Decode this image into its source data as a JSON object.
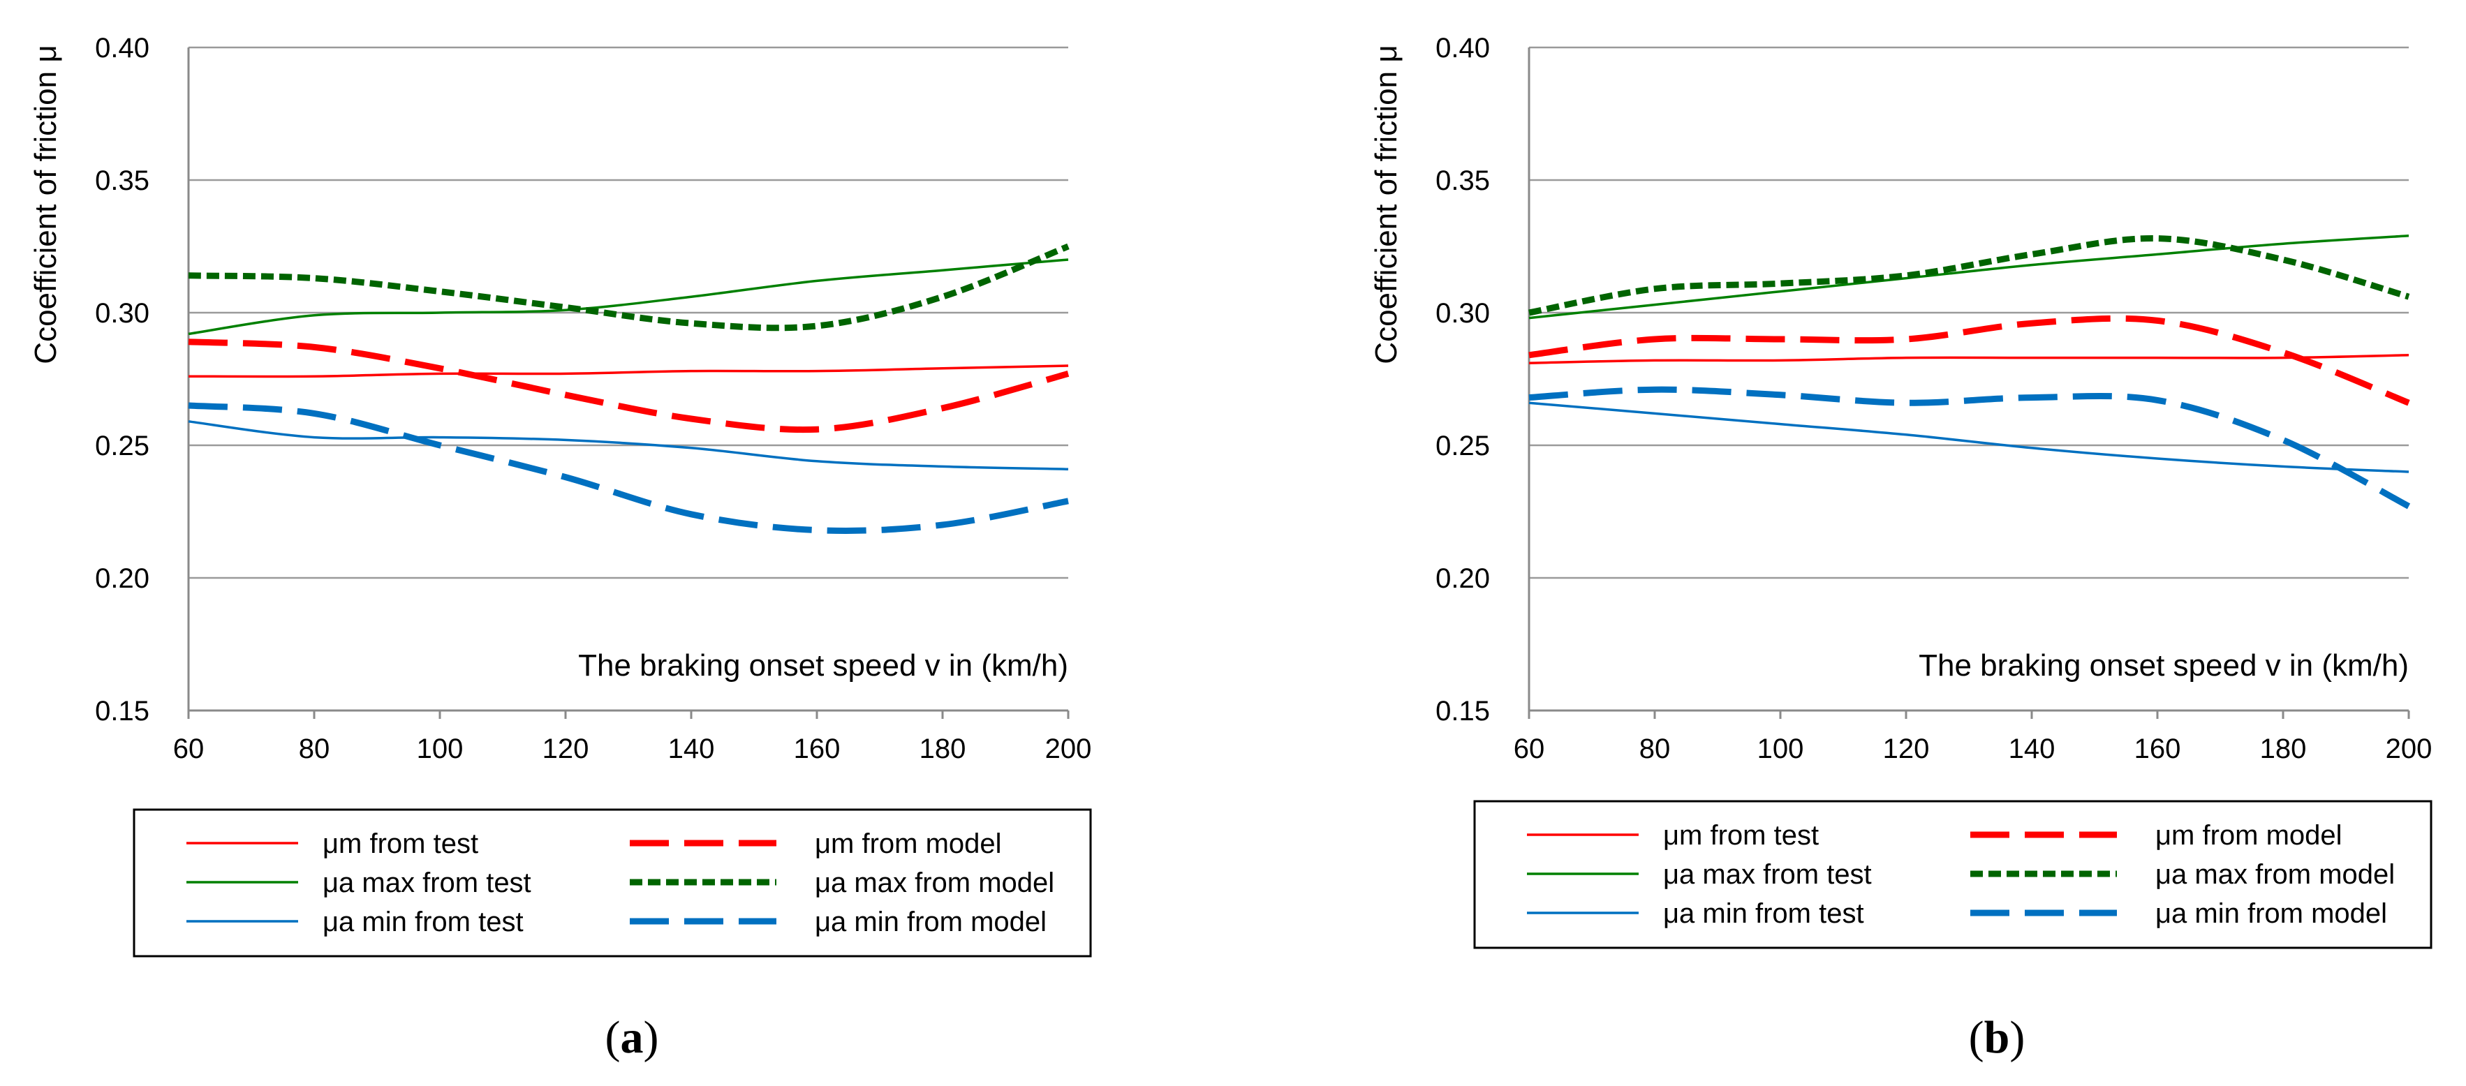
{
  "chart_data": [
    {
      "type": "line",
      "caption": "a",
      "xlabel": "The braking onset speed v in (km/h)",
      "ylabel": "Ccoefficient of friction  μ",
      "xlim": [
        60,
        200
      ],
      "ylim": [
        0.15,
        0.4
      ],
      "x_ticks": [
        "60",
        "80",
        "100",
        "120",
        "140",
        "160",
        "180",
        "200"
      ],
      "y_ticks": [
        "0.15",
        "0.20",
        "0.25",
        "0.30",
        "0.35",
        "0.40"
      ],
      "grid": true,
      "series": [
        {
          "name": "μm from test",
          "color": "#ff0000",
          "style": "solid",
          "x": [
            60,
            80,
            100,
            120,
            140,
            160,
            180,
            200
          ],
          "y": [
            0.276,
            0.276,
            0.277,
            0.277,
            0.278,
            0.278,
            0.279,
            0.28
          ]
        },
        {
          "name": "μa max from test",
          "color": "#008000",
          "style": "solid",
          "x": [
            60,
            80,
            100,
            120,
            140,
            160,
            180,
            200
          ],
          "y": [
            0.292,
            0.299,
            0.3,
            0.301,
            0.306,
            0.312,
            0.316,
            0.32
          ]
        },
        {
          "name": "μa min from test",
          "color": "#0070c0",
          "style": "solid",
          "x": [
            60,
            80,
            100,
            120,
            140,
            160,
            180,
            200
          ],
          "y": [
            0.259,
            0.253,
            0.253,
            0.252,
            0.249,
            0.244,
            0.242,
            0.241
          ]
        },
        {
          "name": "μm from model",
          "color": "#ff0000",
          "style": "dashed",
          "x": [
            60,
            80,
            100,
            120,
            140,
            160,
            180,
            200
          ],
          "y": [
            0.289,
            0.287,
            0.279,
            0.269,
            0.26,
            0.256,
            0.264,
            0.277
          ]
        },
        {
          "name": "μa max from model",
          "color": "#006400",
          "style": "dotted",
          "x": [
            60,
            80,
            100,
            120,
            140,
            160,
            180,
            200
          ],
          "y": [
            0.314,
            0.313,
            0.308,
            0.302,
            0.296,
            0.295,
            0.306,
            0.325
          ]
        },
        {
          "name": "μa min from model",
          "color": "#0070c0",
          "style": "dashed",
          "x": [
            60,
            80,
            100,
            120,
            140,
            160,
            180,
            200
          ],
          "y": [
            0.265,
            0.262,
            0.25,
            0.238,
            0.224,
            0.218,
            0.22,
            0.229
          ]
        }
      ]
    },
    {
      "type": "line",
      "caption": "b",
      "xlabel": "The braking onset speed v in (km/h)",
      "ylabel": "Ccoefficient of friction  μ",
      "xlim": [
        60,
        200
      ],
      "ylim": [
        0.15,
        0.4
      ],
      "x_ticks": [
        "60",
        "80",
        "100",
        "120",
        "140",
        "160",
        "180",
        "200"
      ],
      "y_ticks": [
        "0.15",
        "0.20",
        "0.25",
        "0.30",
        "0.35",
        "0.40"
      ],
      "grid": true,
      "series": [
        {
          "name": "μm from test",
          "color": "#ff0000",
          "style": "solid",
          "x": [
            60,
            80,
            100,
            120,
            140,
            160,
            180,
            200
          ],
          "y": [
            0.281,
            0.282,
            0.282,
            0.283,
            0.283,
            0.283,
            0.283,
            0.284
          ]
        },
        {
          "name": "μa max from test",
          "color": "#008000",
          "style": "solid",
          "x": [
            60,
            80,
            100,
            120,
            140,
            160,
            180,
            200
          ],
          "y": [
            0.298,
            0.303,
            0.308,
            0.313,
            0.318,
            0.322,
            0.326,
            0.329
          ]
        },
        {
          "name": "μa min from test",
          "color": "#0070c0",
          "style": "solid",
          "x": [
            60,
            80,
            100,
            120,
            140,
            160,
            180,
            200
          ],
          "y": [
            0.266,
            0.262,
            0.258,
            0.254,
            0.249,
            0.245,
            0.242,
            0.24
          ]
        },
        {
          "name": "μm from model",
          "color": "#ff0000",
          "style": "dashed",
          "x": [
            60,
            80,
            100,
            120,
            140,
            160,
            180,
            200
          ],
          "y": [
            0.284,
            0.29,
            0.29,
            0.29,
            0.296,
            0.297,
            0.285,
            0.266
          ]
        },
        {
          "name": "μa max from model",
          "color": "#006400",
          "style": "dotted",
          "x": [
            60,
            80,
            100,
            120,
            140,
            160,
            180,
            200
          ],
          "y": [
            0.3,
            0.309,
            0.311,
            0.314,
            0.322,
            0.328,
            0.32,
            0.306
          ]
        },
        {
          "name": "μa min from model",
          "color": "#0070c0",
          "style": "dashed",
          "x": [
            60,
            80,
            100,
            120,
            140,
            160,
            180,
            200
          ],
          "y": [
            0.268,
            0.271,
            0.269,
            0.266,
            0.268,
            0.267,
            0.252,
            0.227
          ]
        }
      ]
    }
  ]
}
